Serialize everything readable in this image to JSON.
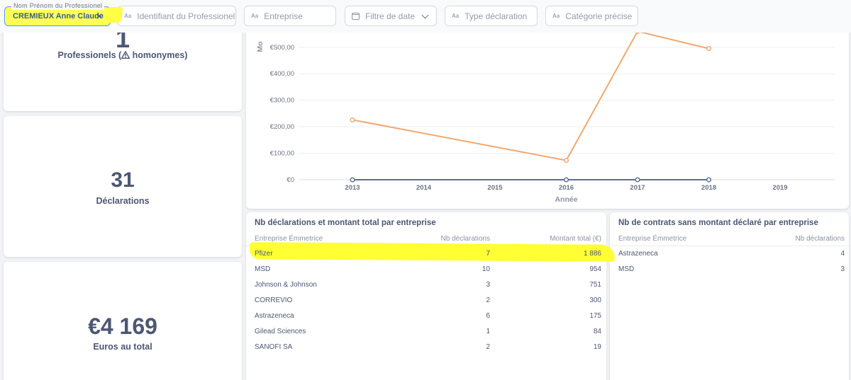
{
  "filters": {
    "active": {
      "legend": "Nom Prénom du Professionel",
      "value": "CREMIEUX Anne Claude"
    },
    "items": [
      {
        "type_icon": "Aa",
        "label": "Identifiant du Professionel"
      },
      {
        "type_icon": "Aa",
        "label": "Entreprise"
      },
      {
        "type_icon": "calendar-icon",
        "label": "Filtre de date"
      },
      {
        "type_icon": "Aa",
        "label": "Type déclaration"
      },
      {
        "type_icon": "Aa",
        "label": "Catégorie précise"
      }
    ]
  },
  "kpis": {
    "professionals": {
      "value": "1",
      "label_prefix": "Professionels (",
      "label_suffix": " homonymes)"
    },
    "declarations": {
      "value": "31",
      "label": "Déclarations"
    },
    "total": {
      "value": "€4 169",
      "label": "Euros au total"
    }
  },
  "chart_data": {
    "type": "line",
    "xlabel": "Année",
    "ylabel": "Mo",
    "x": [
      "2013",
      "2014",
      "2015",
      "2016",
      "2017",
      "2018",
      "2019"
    ],
    "y_ticks": [
      "€0",
      "€100,00",
      "€200,00",
      "€300,00",
      "€400,00",
      "€500,00"
    ],
    "ylim": [
      0,
      540
    ],
    "series": [
      {
        "color": "#f2a86f",
        "points": [
          [
            2013,
            226
          ],
          [
            2016,
            73
          ],
          [
            2017,
            560
          ],
          [
            2018,
            495
          ]
        ]
      },
      {
        "color": "#5d6c9b",
        "points": [
          [
            2013,
            0
          ],
          [
            2016,
            0
          ],
          [
            2017,
            0
          ],
          [
            2018,
            0
          ]
        ]
      }
    ]
  },
  "table1": {
    "title": "Nb déclarations et montant total par entreprise",
    "headers": [
      "Entreprise Émmetrice",
      "Nb déclarations",
      "Montant total (€)"
    ],
    "rows": [
      [
        "Pfizer",
        "7",
        "1 886"
      ],
      [
        "MSD",
        "10",
        "954"
      ],
      [
        "Johnson & Johnson",
        "3",
        "751"
      ],
      [
        "CORREVIO",
        "2",
        "300"
      ],
      [
        "Astrazeneca",
        "6",
        "175"
      ],
      [
        "Gilead Sciences",
        "1",
        "84"
      ],
      [
        "SANOFI SA",
        "2",
        "19"
      ]
    ]
  },
  "table2": {
    "title": "Nb de contrats sans montant déclaré par entreprise",
    "headers": [
      "Entreprise Émmetrice",
      "Nb déclarations"
    ],
    "rows": [
      [
        "Astrazeneca",
        "4"
      ],
      [
        "MSD",
        "3"
      ]
    ]
  }
}
